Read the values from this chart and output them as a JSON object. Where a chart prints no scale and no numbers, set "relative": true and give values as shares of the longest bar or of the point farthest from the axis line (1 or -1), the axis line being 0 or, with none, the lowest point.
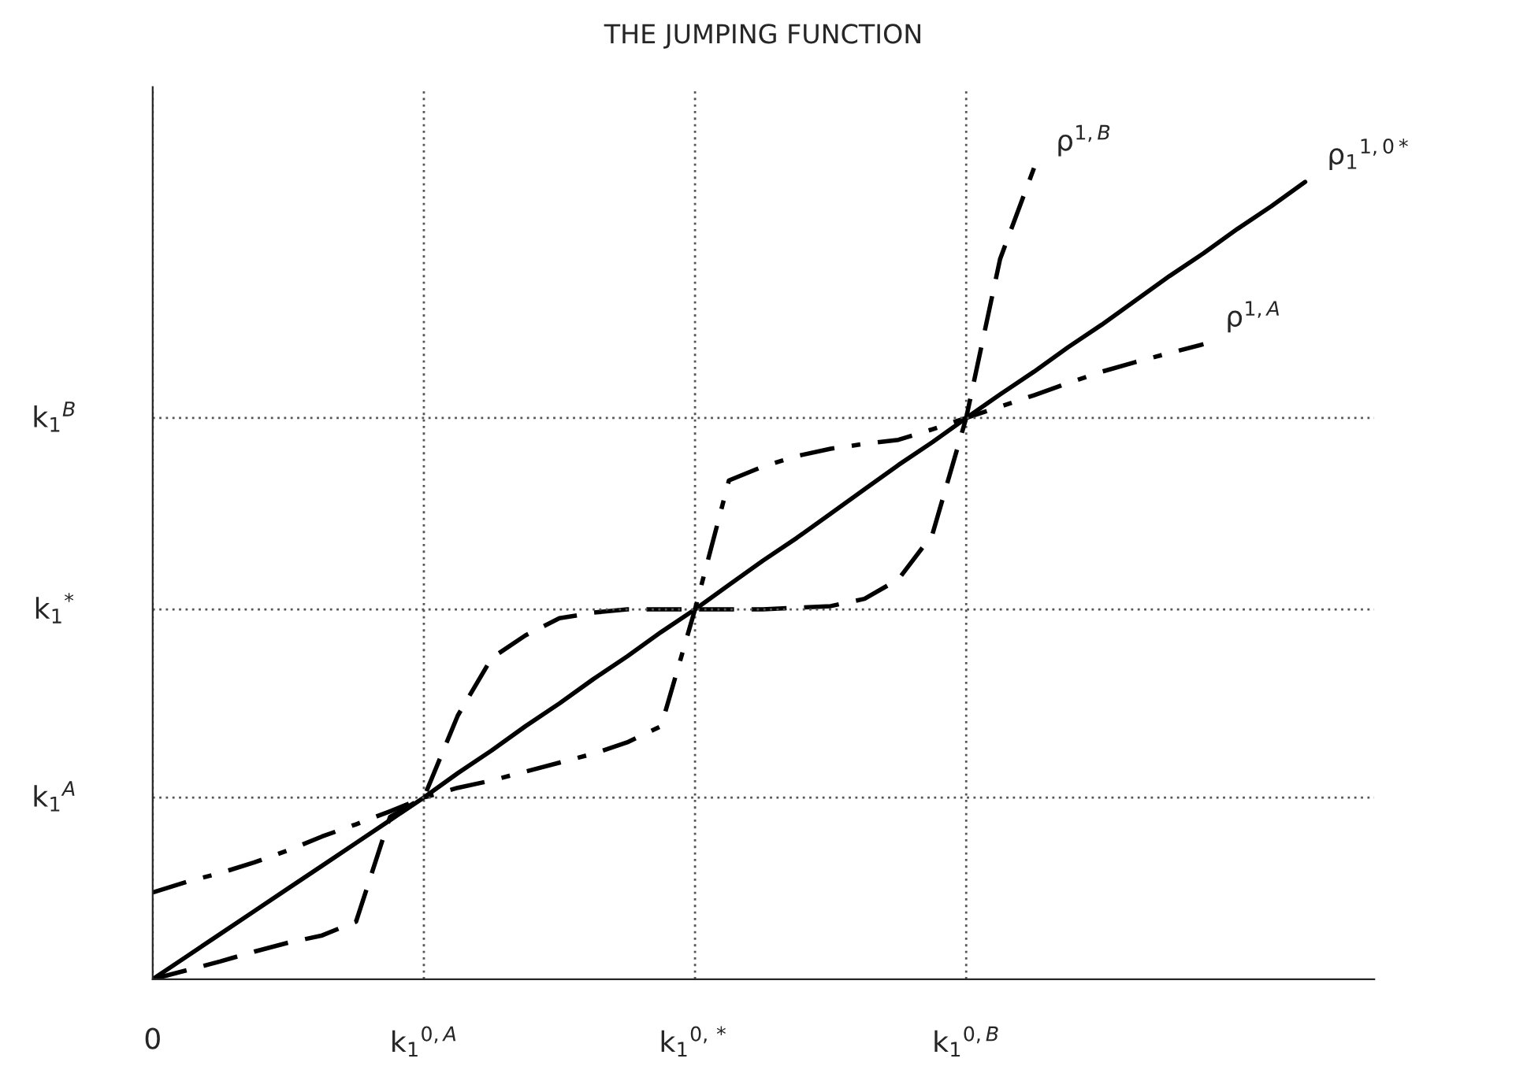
{
  "chart_data": {
    "type": "line",
    "title": "THE JUMPING FUNCTION",
    "relative": true,
    "grid": "x",
    "categories": [
      "0",
      null,
      null,
      null,
      null,
      null,
      null,
      null,
      "k$_{1}$$^{0,A}$",
      null,
      null,
      null,
      null,
      null,
      null,
      null,
      "k$_{1}$$^{0,*}$",
      null,
      null,
      null,
      null,
      null,
      null,
      null,
      "k$_{1}$$^{0,B}$",
      null,
      null,
      null,
      null,
      null,
      null,
      null,
      null,
      null,
      null
    ],
    "ref_lines": [
      {
        "axis": "y",
        "value": 0.224,
        "label": "k$_{1}$$^{A}$",
        "line_style": "dotted",
        "color": "#555555"
      },
      {
        "axis": "y",
        "value": 0.456,
        "label": "k$_{1}$$^{*}$",
        "line_style": "dotted",
        "color": "#555555"
      },
      {
        "axis": "y",
        "value": 0.692,
        "label": "k$_{1}$$^{B}$",
        "line_style": "dotted",
        "color": "#555555"
      }
    ],
    "series": [
      {
        "name": "ρ$_{1}$$^{1,0*}$",
        "color": "#000000",
        "line_style": "solid",
        "values": [
          0,
          0.028,
          0.056,
          0.084,
          0.112,
          0.14,
          0.168,
          0.196,
          0.224,
          0.254,
          0.282,
          0.312,
          0.34,
          0.37,
          0.398,
          0.428,
          0.456,
          0.486,
          0.516,
          0.544,
          0.574,
          0.604,
          0.634,
          0.662,
          0.692,
          0.721,
          0.749,
          0.779,
          0.807,
          0.837,
          0.867,
          0.895,
          0.925,
          0.953,
          0.983
        ]
      },
      {
        "name": "ρ$^{1,B}$",
        "color": "#000000",
        "line_style": "dashed",
        "values": [
          0,
          0.011,
          0.022,
          0.034,
          0.045,
          0.054,
          0.071,
          0.2,
          0.224,
          0.325,
          0.396,
          0.424,
          0.445,
          0.452,
          0.456,
          0.456,
          0.456,
          0.456,
          0.456,
          0.458,
          0.46,
          0.469,
          0.493,
          0.548,
          0.692,
          0.888,
          1.0,
          null,
          null,
          null,
          null,
          null,
          null,
          null,
          null
        ]
      },
      {
        "name": "ρ$^{1,A}$",
        "color": "#000000",
        "line_style": "dashdot",
        "values": [
          0.107,
          0.12,
          0.131,
          0.144,
          0.159,
          0.176,
          0.191,
          0.207,
          0.224,
          0.236,
          0.245,
          0.256,
          0.267,
          0.278,
          0.292,
          0.312,
          0.456,
          0.615,
          0.632,
          0.645,
          0.654,
          0.66,
          0.665,
          0.678,
          0.692,
          0.706,
          0.72,
          0.735,
          0.749,
          0.761,
          0.772,
          0.783,
          null,
          null,
          null
        ]
      }
    ]
  }
}
